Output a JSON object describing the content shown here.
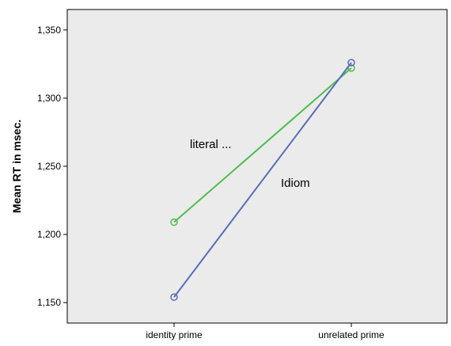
{
  "chart_data": {
    "type": "line",
    "categories": [
      "identity prime",
      "unrelated prime"
    ],
    "ylabel": "Mean RT in msec.",
    "xlabel": "",
    "ylim": [
      1135,
      1365
    ],
    "yticks": [
      1150,
      1200,
      1250,
      1300,
      1350
    ],
    "ytick_labels": [
      "1,150",
      "1,200",
      "1,250",
      "1,300",
      "1,350"
    ],
    "grid": false,
    "background": "#ebebeb",
    "series": [
      {
        "name": "literal ...",
        "values": [
          1209,
          1322
        ],
        "color": "#4fbe4f"
      },
      {
        "name": "Idiom",
        "values": [
          1154,
          1326
        ],
        "color": "#5a6cb8"
      }
    ]
  }
}
